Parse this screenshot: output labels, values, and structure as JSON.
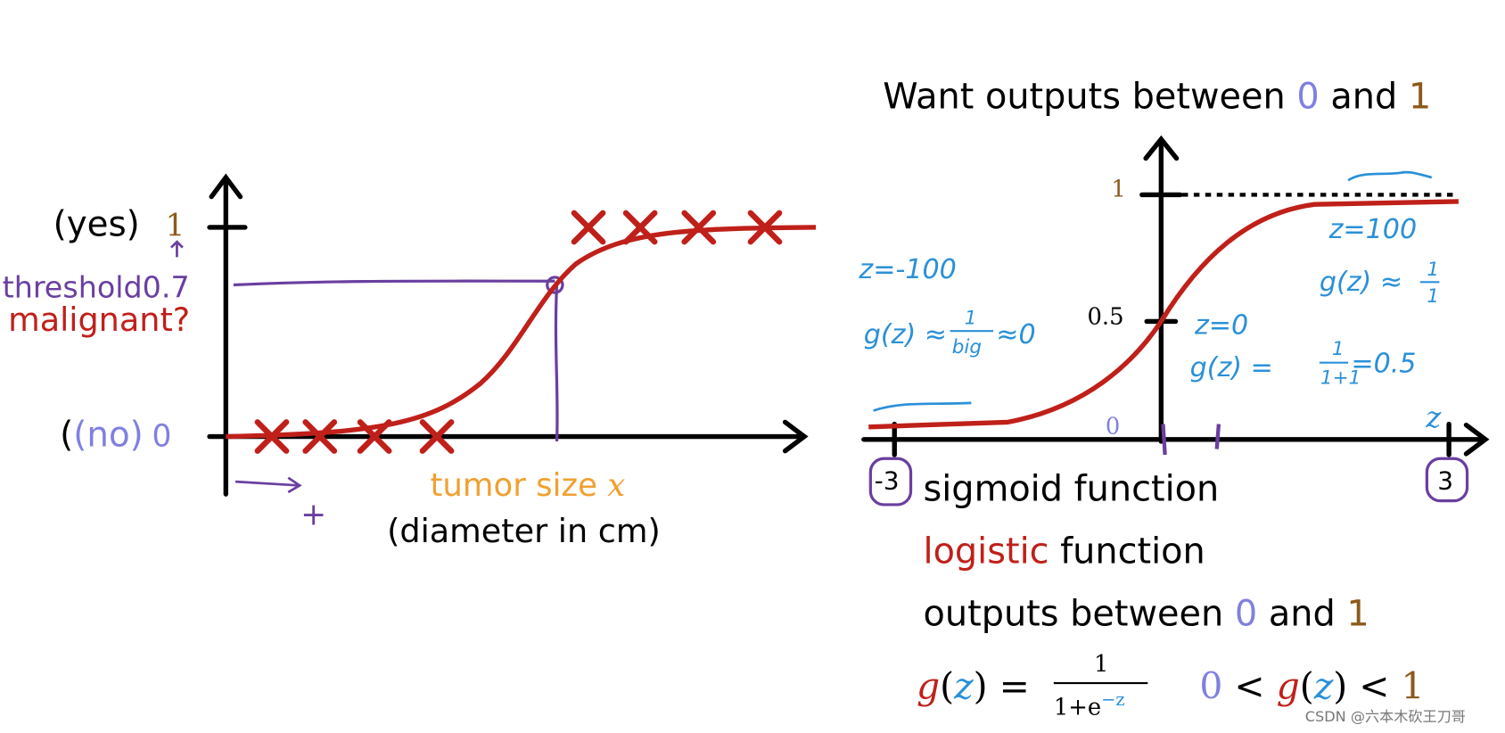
{
  "left_plot": {
    "yes_label": "(yes)",
    "one": "1",
    "threshold": "threshold",
    "threshold_value": "0.7",
    "malignant": "malignant?",
    "no_label": "(no)",
    "zero": "0",
    "x_label": "tumor size",
    "x_var": "x",
    "x_sublabel": "(diameter in cm)",
    "plus": "+"
  },
  "right_plot": {
    "title": "Want outputs between",
    "title_zero": "0",
    "title_and": "and",
    "title_one": "1",
    "y_one": "1",
    "y_half": "0.5",
    "origin": "0",
    "z_axis": "z",
    "left_tick": "-3",
    "right_tick": "3",
    "notes": {
      "neg_z": "z=-100",
      "neg_g": "g(z) ≈",
      "neg_num": "1",
      "neg_den": "big",
      "neg_result": "≈0",
      "zero_z": "z=0",
      "zero_g": "g(z) =",
      "zero_num": "1",
      "zero_den": "1+1",
      "zero_result": "=0.5",
      "pos_z": "z=100",
      "pos_g": "g(z) ≈",
      "pos_num": "1",
      "pos_den": "1"
    }
  },
  "names": {
    "sigmoid": "sigmoid function",
    "logistic": "logistic",
    "logistic_rest": "function",
    "outputs": "outputs between",
    "outputs_zero": "0",
    "outputs_and": "and",
    "outputs_one": "1"
  },
  "formula": {
    "g": "g",
    "open": "(",
    "z": "z",
    "close": ")",
    "eq": "=",
    "num": "1",
    "den": "1+e",
    "den_exp": "−z",
    "ineq_zero": "0",
    "lt1": "<",
    "ineq_g": "g",
    "ineq_open": "(",
    "ineq_z": "z",
    "ineq_close": ")",
    "lt2": "<",
    "ineq_one": "1"
  },
  "watermark": "CSDN @六本木砍王刀哥"
}
